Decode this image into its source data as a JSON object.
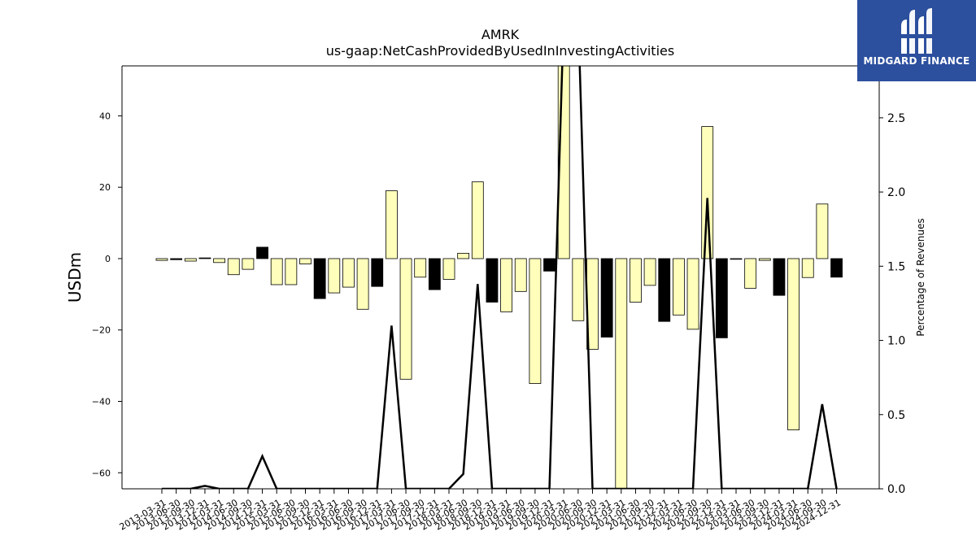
{
  "chart_data": {
    "type": "bar",
    "title": "AMRK",
    "subtitle": "us-gaap:NetCashProvidedByUsedInInvestingActivities",
    "ylabel": "USDm",
    "y2label": "Percentage of Revenues",
    "ylim": [
      -64.5,
      54
    ],
    "y2lim": [
      0.0,
      2.85
    ],
    "yticks": [
      40,
      20,
      0,
      -20,
      -40,
      -60
    ],
    "y2ticks": [
      2.5,
      2.0,
      1.5,
      1.0,
      0.5,
      0.0
    ],
    "categories": [
      "2013-03-31",
      "2013-06-30",
      "2013-09-30",
      "2013-12-31",
      "2014-03-31",
      "2014-06-30",
      "2014-09-30",
      "2014-12-31",
      "2015-03-31",
      "2015-06-30",
      "2015-09-30",
      "2015-12-31",
      "2016-03-31",
      "2016-06-30",
      "2016-09-30",
      "2016-12-31",
      "2017-03-31",
      "2017-06-30",
      "2017-09-30",
      "2017-12-31",
      "2018-03-31",
      "2018-06-30",
      "2018-09-30",
      "2018-12-31",
      "2019-03-31",
      "2019-06-30",
      "2019-09-30",
      "2019-12-31",
      "2020-03-31",
      "2020-06-30",
      "2020-09-30",
      "2020-12-31",
      "2021-03-31",
      "2021-06-30",
      "2021-09-30",
      "2021-12-31",
      "2022-03-31",
      "2022-06-30",
      "2022-09-30",
      "2022-12-31",
      "2023-03-31",
      "2023-06-30",
      "2023-09-30",
      "2023-12-31",
      "2024-03-31",
      "2024-06-30",
      "2024-09-30",
      "2024-12-31"
    ],
    "bar_values": [
      -0.5,
      -0.3,
      -0.7,
      0.2,
      -1.1,
      -4.5,
      -3.0,
      3.2,
      -7.3,
      -7.3,
      -1.5,
      -11.2,
      -9.6,
      -8.0,
      -14.2,
      -7.8,
      19.0,
      -33.8,
      -5.2,
      -8.7,
      -5.8,
      1.5,
      21.5,
      -12.2,
      -14.9,
      -9.2,
      -35.0,
      -3.5,
      57.0,
      -17.4,
      -25.4,
      -22.0,
      -66.0,
      -12.2,
      -7.5,
      -17.6,
      -15.8,
      -19.8,
      37.0,
      -22.2,
      -0.2,
      -8.3,
      -0.5,
      -10.3,
      -48.0,
      -5.3,
      15.3,
      -5.2
    ],
    "bar_fill": [
      "#ffffbb",
      "#000000",
      "#ffffbb",
      "#000000",
      "#ffffbb",
      "#ffffbb",
      "#ffffbb",
      "#000000",
      "#ffffbb",
      "#ffffbb",
      "#ffffbb",
      "#000000",
      "#ffffbb",
      "#ffffbb",
      "#ffffbb",
      "#000000",
      "#ffffbb",
      "#ffffbb",
      "#ffffbb",
      "#000000",
      "#ffffbb",
      "#ffffbb",
      "#ffffbb",
      "#000000",
      "#ffffbb",
      "#ffffbb",
      "#ffffbb",
      "#000000",
      "#ffffbb",
      "#ffffbb",
      "#ffffbb",
      "#000000",
      "#ffffbb",
      "#ffffbb",
      "#ffffbb",
      "#000000",
      "#ffffbb",
      "#ffffbb",
      "#ffffbb",
      "#000000",
      "#ffffbb",
      "#ffffbb",
      "#ffffbb",
      "#000000",
      "#ffffbb",
      "#ffffbb",
      "#ffffbb",
      "#000000"
    ],
    "line_values": [
      0.0,
      0.0,
      0.0,
      0.02,
      0.0,
      0.0,
      0.0,
      0.22,
      0.0,
      0.0,
      0.0,
      0.0,
      0.0,
      0.0,
      0.0,
      0.0,
      1.1,
      0.0,
      0.0,
      0.0,
      0.0,
      0.1,
      1.38,
      0.0,
      0.0,
      0.0,
      0.0,
      0.0,
      3.2,
      3.2,
      0.0,
      0.0,
      0.0,
      0.0,
      0.0,
      0.0,
      0.0,
      0.0,
      1.96,
      0.0,
      0.0,
      0.0,
      0.0,
      0.0,
      0.0,
      0.0,
      0.57,
      0.0
    ],
    "grid": false,
    "legend": "none"
  },
  "logo": {
    "name": "MIDGARD FINANCE",
    "bg_color": "#2c4f9e"
  }
}
